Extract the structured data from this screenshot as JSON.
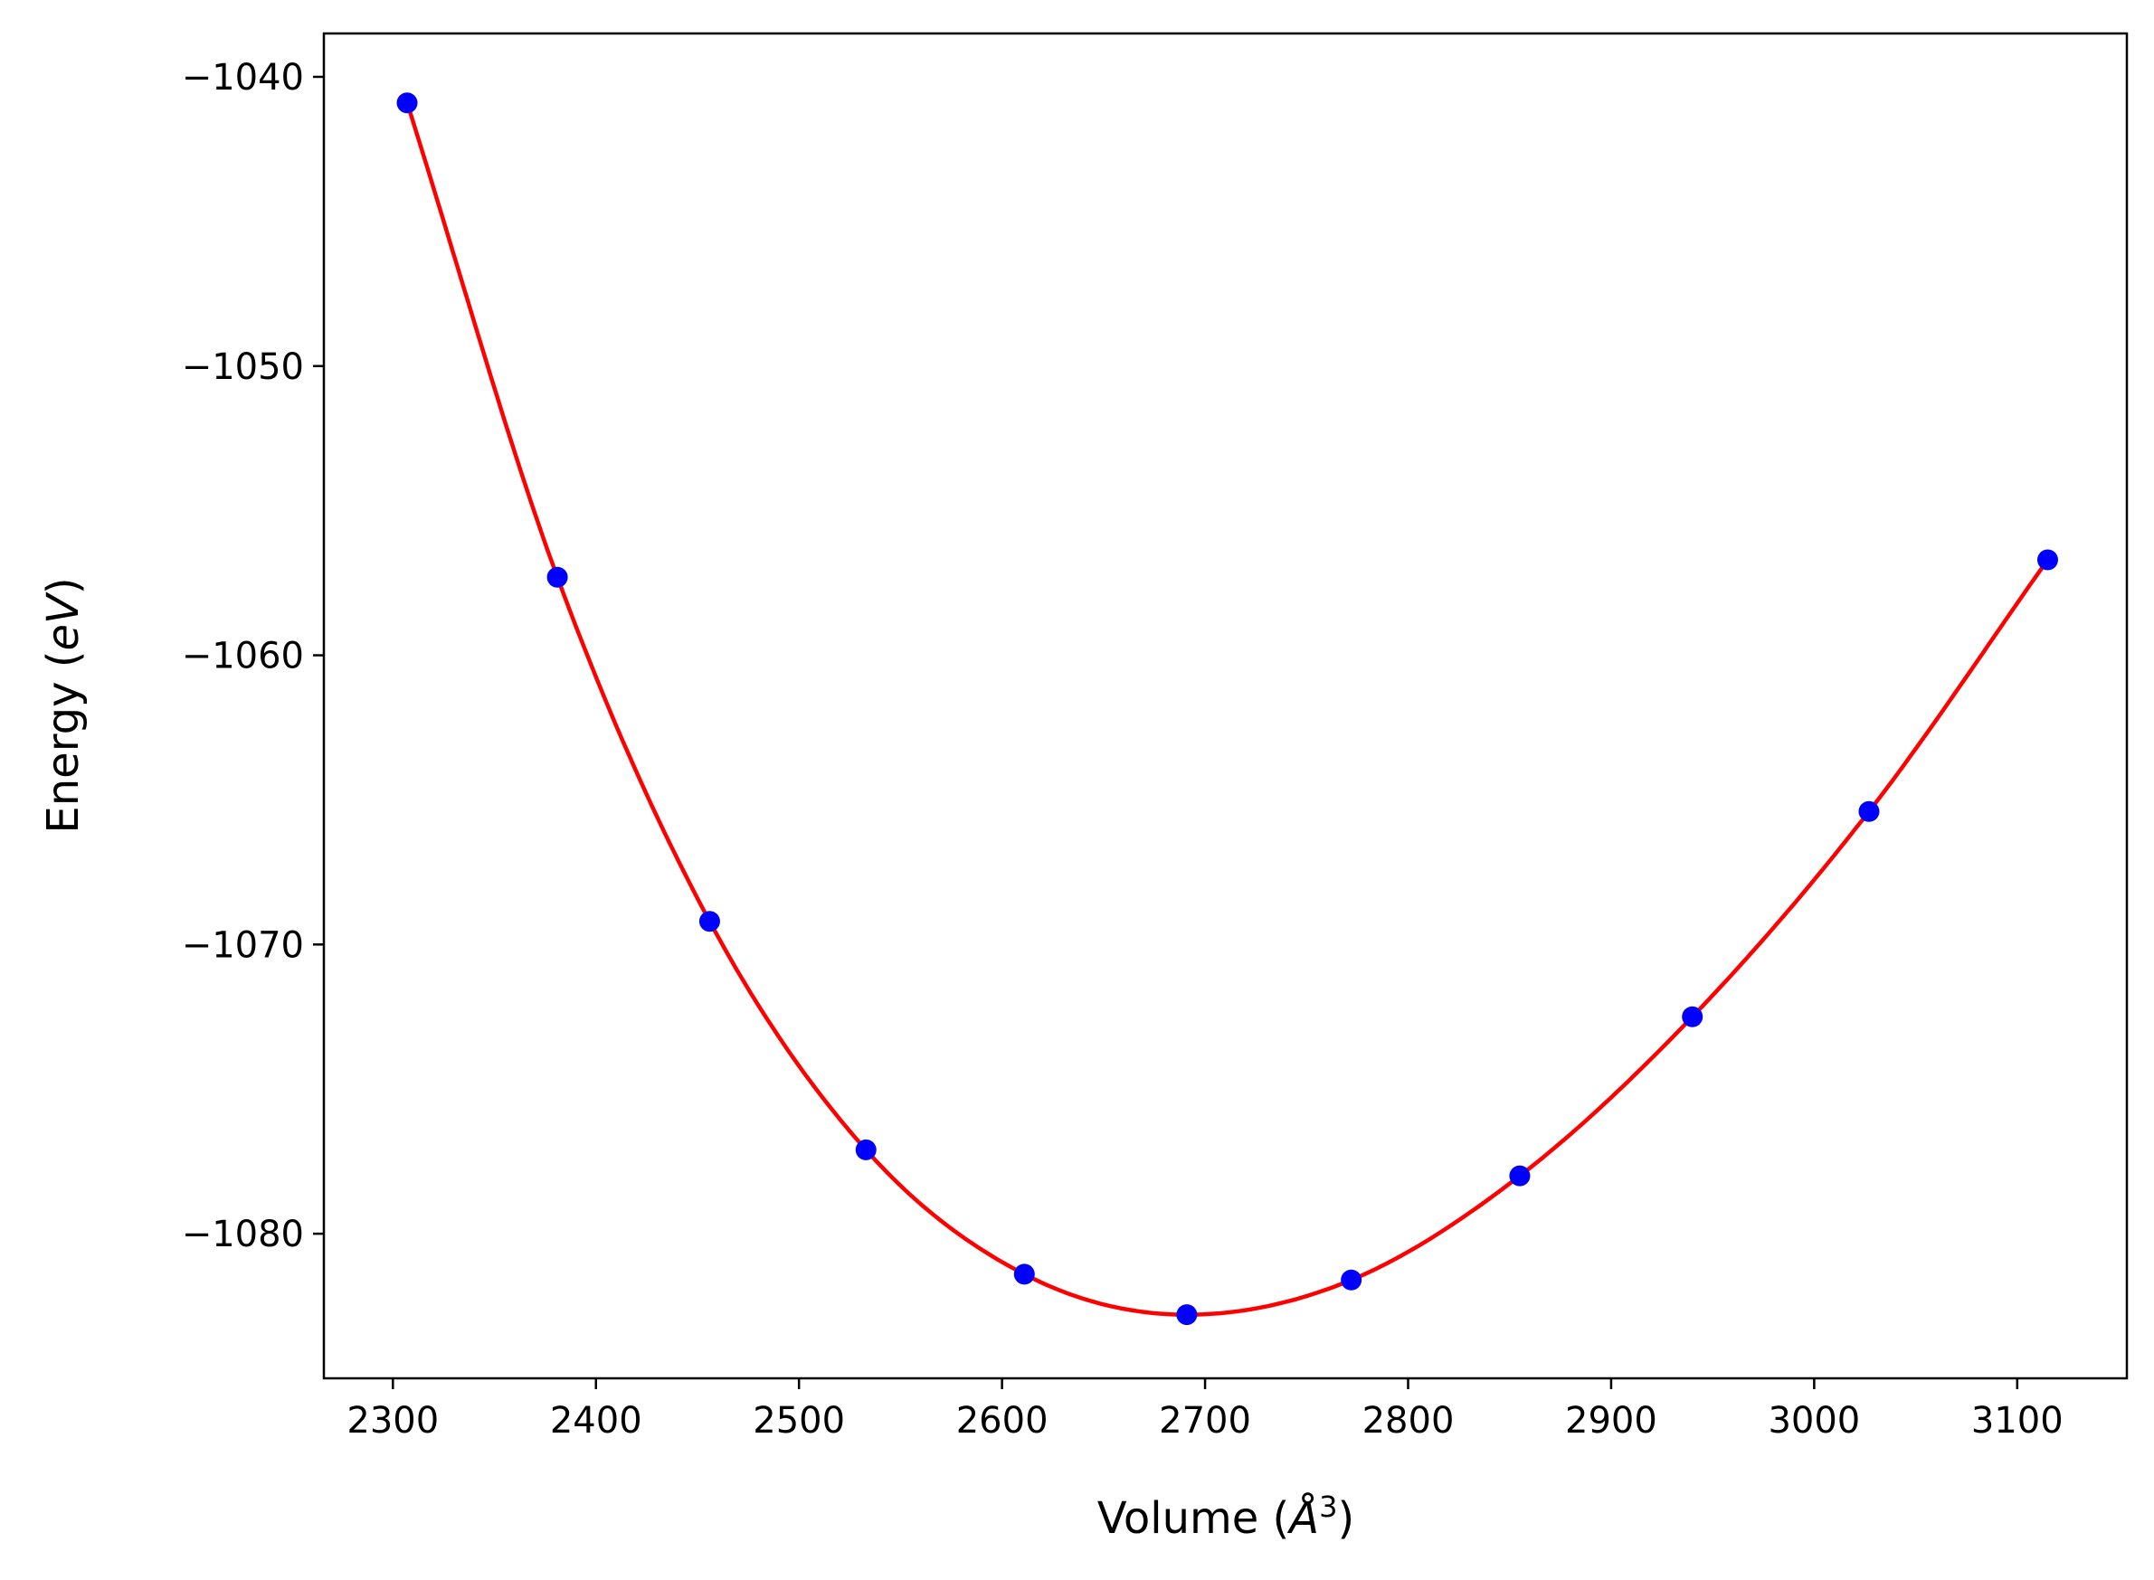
{
  "chart_data": {
    "type": "scatter",
    "title": "",
    "xlabel_prefix": "Volume (",
    "xlabel_unit": "Å",
    "xlabel_exp": "3",
    "xlabel_suffix": ")",
    "ylabel_prefix": "Energy (",
    "ylabel_unit": "eV",
    "ylabel_suffix": ")",
    "xlim": [
      2266,
      3154
    ],
    "ylim": [
      -1085.0,
      -1038.5
    ],
    "xticks": [
      2300,
      2400,
      2500,
      2600,
      2700,
      2800,
      2900,
      3000,
      3100
    ],
    "yticks": [
      -1040,
      -1050,
      -1060,
      -1070,
      -1080
    ],
    "grid": false,
    "series": [
      {
        "kind": "points",
        "color": "#0000ff",
        "x": [
          2307,
          2381,
          2456,
          2533,
          2611,
          2691,
          2772,
          2855,
          2940,
          3027,
          3115
        ],
        "y": [
          -1040.9,
          -1057.3,
          -1069.2,
          -1077.1,
          -1081.4,
          -1082.8,
          -1081.6,
          -1078.0,
          -1072.5,
          -1065.4,
          -1056.7
        ]
      },
      {
        "kind": "fit",
        "color": "#ff0000"
      }
    ]
  }
}
